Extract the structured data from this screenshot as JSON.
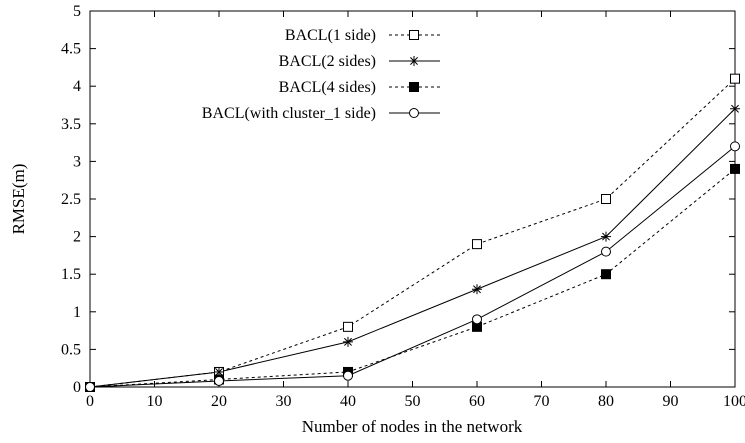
{
  "chart_data": {
    "type": "line",
    "title": "",
    "xlabel": "Number of nodes in the network",
    "ylabel": "RMSE(m)",
    "xlim": [
      0,
      100
    ],
    "ylim": [
      0,
      5
    ],
    "xticks": [
      0,
      10,
      20,
      30,
      40,
      50,
      60,
      70,
      80,
      90,
      100
    ],
    "yticks": [
      0,
      0.5,
      1,
      1.5,
      2,
      2.5,
      3,
      3.5,
      4,
      4.5,
      5
    ],
    "xtick_labels": [
      "0",
      "10",
      "20",
      "30",
      "40",
      "50",
      "60",
      "70",
      "80",
      "90",
      "100"
    ],
    "ytick_labels": [
      "0",
      "0.5",
      "1",
      "1.5",
      "2",
      "2.5",
      "3",
      "3.5",
      "4",
      "4.5",
      "5"
    ],
    "grid": false,
    "legend_position": "top-left",
    "x": [
      0,
      20,
      40,
      60,
      80,
      100
    ],
    "series": [
      {
        "name": "BACL(1 side)",
        "values": [
          0,
          0.2,
          0.8,
          1.9,
          2.5,
          4.1
        ],
        "line_style": "dotted",
        "marker": "open-square"
      },
      {
        "name": "BACL(2 sides)",
        "values": [
          0,
          0.2,
          0.6,
          1.3,
          2.0,
          3.7
        ],
        "line_style": "solid",
        "marker": "asterisk"
      },
      {
        "name": "BACL(4 sides)",
        "values": [
          0,
          0.1,
          0.2,
          0.8,
          1.5,
          2.9
        ],
        "line_style": "dotted",
        "marker": "filled-square"
      },
      {
        "name": "BACL(with cluster_1 side)",
        "values": [
          0,
          0.08,
          0.15,
          0.9,
          1.8,
          3.2
        ],
        "line_style": "solid",
        "marker": "open-circle"
      }
    ]
  }
}
